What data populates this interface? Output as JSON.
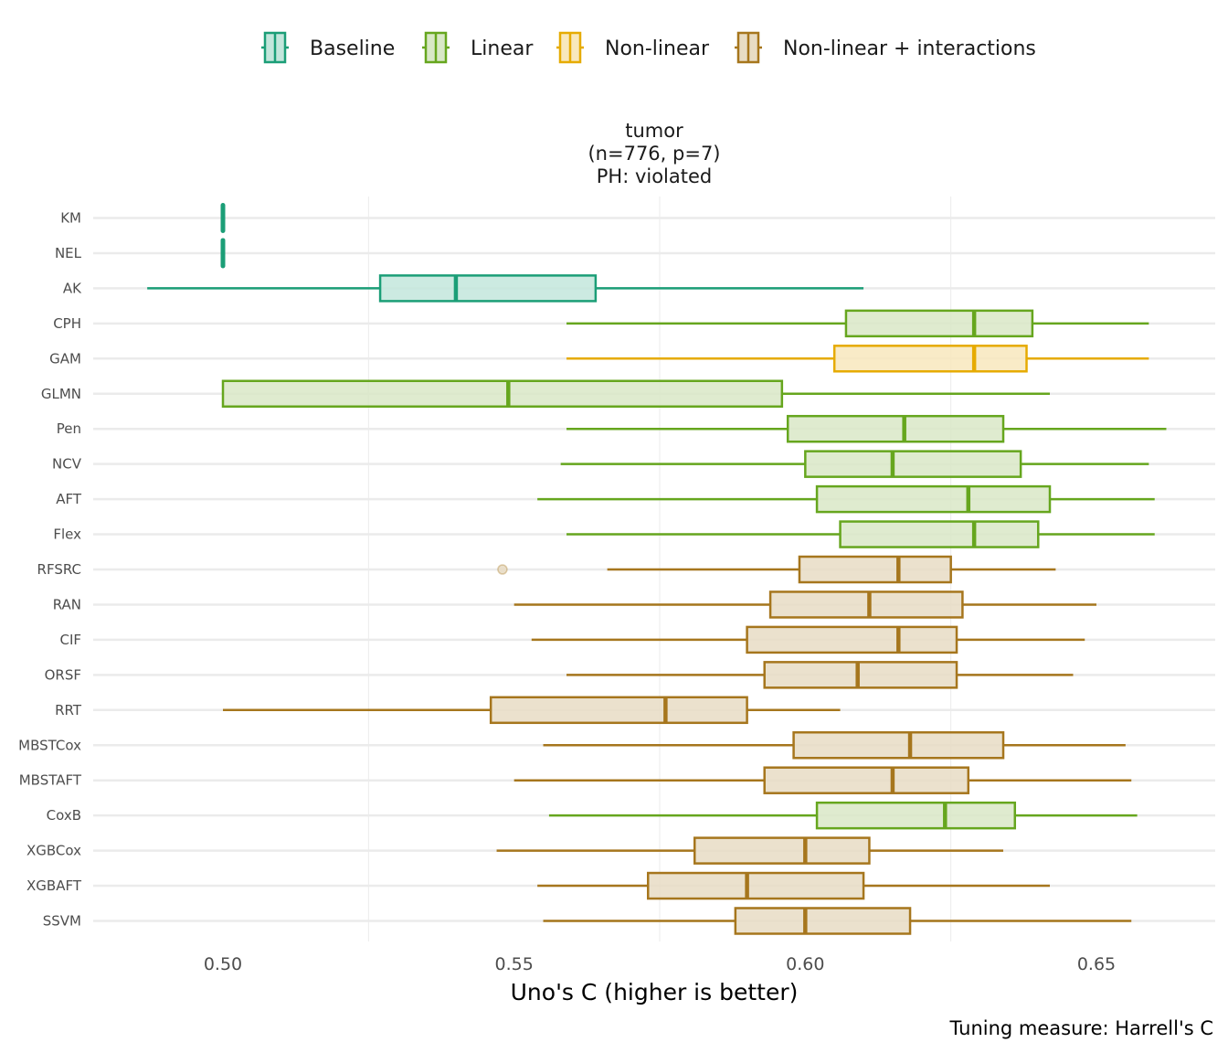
{
  "chart_data": {
    "type": "boxplot",
    "orientation": "horizontal",
    "title_lines": [
      "tumor",
      "(n=776, p=7)",
      "PH: violated"
    ],
    "xlabel": "Uno's C (higher is better)",
    "ylabel": "",
    "caption": "Tuning measure: Harrell's C",
    "xlim": [
      0.478,
      0.67
    ],
    "x_ticks": [
      0.5,
      0.55,
      0.6,
      0.65
    ],
    "x_tick_labels": [
      "0.50",
      "0.55",
      "0.60",
      "0.65"
    ],
    "x_minor_grid": [
      0.525,
      0.575,
      0.625
    ],
    "grid": true,
    "legend": {
      "position": "top",
      "entries": [
        {
          "name": "Baseline",
          "color": "#1b9e77",
          "fill": "#c3e6dc"
        },
        {
          "name": "Linear",
          "color": "#66a61e",
          "fill": "#d9e8c7"
        },
        {
          "name": "Non-linear",
          "color": "#e6ab02",
          "fill": "#f8e8bd"
        },
        {
          "name": "Non-linear + interactions",
          "color": "#a6761d",
          "fill": "#e8dcc4"
        }
      ]
    },
    "series": [
      {
        "name": "KM",
        "group": "Baseline",
        "whisker_low": 0.5,
        "q1": 0.5,
        "median": 0.5,
        "q3": 0.5,
        "whisker_high": 0.5,
        "outliers": []
      },
      {
        "name": "NEL",
        "group": "Baseline",
        "whisker_low": 0.5,
        "q1": 0.5,
        "median": 0.5,
        "q3": 0.5,
        "whisker_high": 0.5,
        "outliers": []
      },
      {
        "name": "AK",
        "group": "Baseline",
        "whisker_low": 0.487,
        "q1": 0.527,
        "median": 0.54,
        "q3": 0.564,
        "whisker_high": 0.61,
        "outliers": []
      },
      {
        "name": "CPH",
        "group": "Linear",
        "whisker_low": 0.559,
        "q1": 0.607,
        "median": 0.629,
        "q3": 0.639,
        "whisker_high": 0.659,
        "outliers": []
      },
      {
        "name": "GAM",
        "group": "Non-linear",
        "whisker_low": 0.559,
        "q1": 0.605,
        "median": 0.629,
        "q3": 0.638,
        "whisker_high": 0.659,
        "outliers": []
      },
      {
        "name": "GLMN",
        "group": "Linear",
        "whisker_low": 0.5,
        "q1": 0.5,
        "median": 0.549,
        "q3": 0.596,
        "whisker_high": 0.642,
        "outliers": []
      },
      {
        "name": "Pen",
        "group": "Linear",
        "whisker_low": 0.559,
        "q1": 0.597,
        "median": 0.617,
        "q3": 0.634,
        "whisker_high": 0.662,
        "outliers": []
      },
      {
        "name": "NCV",
        "group": "Linear",
        "whisker_low": 0.558,
        "q1": 0.6,
        "median": 0.615,
        "q3": 0.637,
        "whisker_high": 0.659,
        "outliers": []
      },
      {
        "name": "AFT",
        "group": "Linear",
        "whisker_low": 0.554,
        "q1": 0.602,
        "median": 0.628,
        "q3": 0.642,
        "whisker_high": 0.66,
        "outliers": []
      },
      {
        "name": "Flex",
        "group": "Linear",
        "whisker_low": 0.559,
        "q1": 0.606,
        "median": 0.629,
        "q3": 0.64,
        "whisker_high": 0.66,
        "outliers": []
      },
      {
        "name": "RFSRC",
        "group": "Non-linear + interactions",
        "whisker_low": 0.566,
        "q1": 0.599,
        "median": 0.616,
        "q3": 0.625,
        "whisker_high": 0.643,
        "outliers": [
          0.548
        ]
      },
      {
        "name": "RAN",
        "group": "Non-linear + interactions",
        "whisker_low": 0.55,
        "q1": 0.594,
        "median": 0.611,
        "q3": 0.627,
        "whisker_high": 0.65,
        "outliers": []
      },
      {
        "name": "CIF",
        "group": "Non-linear + interactions",
        "whisker_low": 0.553,
        "q1": 0.59,
        "median": 0.616,
        "q3": 0.626,
        "whisker_high": 0.648,
        "outliers": []
      },
      {
        "name": "ORSF",
        "group": "Non-linear + interactions",
        "whisker_low": 0.559,
        "q1": 0.593,
        "median": 0.609,
        "q3": 0.626,
        "whisker_high": 0.646,
        "outliers": []
      },
      {
        "name": "RRT",
        "group": "Non-linear + interactions",
        "whisker_low": 0.5,
        "q1": 0.546,
        "median": 0.576,
        "q3": 0.59,
        "whisker_high": 0.606,
        "outliers": []
      },
      {
        "name": "MBSTCox",
        "group": "Non-linear + interactions",
        "whisker_low": 0.555,
        "q1": 0.598,
        "median": 0.618,
        "q3": 0.634,
        "whisker_high": 0.655,
        "outliers": []
      },
      {
        "name": "MBSTAFT",
        "group": "Non-linear + interactions",
        "whisker_low": 0.55,
        "q1": 0.593,
        "median": 0.615,
        "q3": 0.628,
        "whisker_high": 0.656,
        "outliers": []
      },
      {
        "name": "CoxB",
        "group": "Linear",
        "whisker_low": 0.556,
        "q1": 0.602,
        "median": 0.624,
        "q3": 0.636,
        "whisker_high": 0.657,
        "outliers": []
      },
      {
        "name": "XGBCox",
        "group": "Non-linear + interactions",
        "whisker_low": 0.547,
        "q1": 0.581,
        "median": 0.6,
        "q3": 0.611,
        "whisker_high": 0.634,
        "outliers": []
      },
      {
        "name": "XGBAFT",
        "group": "Non-linear + interactions",
        "whisker_low": 0.554,
        "q1": 0.573,
        "median": 0.59,
        "q3": 0.61,
        "whisker_high": 0.642,
        "outliers": []
      },
      {
        "name": "SSVM",
        "group": "Non-linear + interactions",
        "whisker_low": 0.555,
        "q1": 0.588,
        "median": 0.6,
        "q3": 0.618,
        "whisker_high": 0.656,
        "outliers": []
      }
    ]
  }
}
